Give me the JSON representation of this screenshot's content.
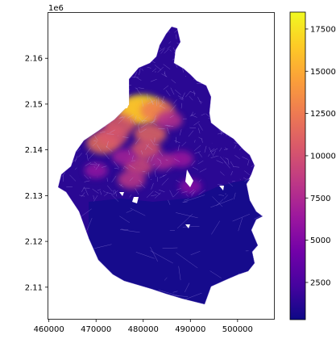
{
  "chart_data": {
    "type": "choropleth",
    "title": "",
    "xlabel": "",
    "ylabel": "",
    "xlim": [
      459800,
      507800
    ],
    "ylim": [
      2103000,
      2170000
    ],
    "x_ticks": [
      460000,
      470000,
      480000,
      490000,
      500000
    ],
    "x_tick_labels": [
      "460000",
      "470000",
      "480000",
      "490000",
      "500000"
    ],
    "y_ticks": [
      2110000,
      2120000,
      2130000,
      2140000,
      2150000,
      2160000
    ],
    "y_tick_labels": [
      "2.11",
      "2.12",
      "2.13",
      "2.14",
      "2.15",
      "2.16"
    ],
    "y_offset_label": "1e6",
    "colormap": "plasma",
    "colorbar": {
      "range": [
        300,
        18500
      ],
      "ticks": [
        2500,
        5000,
        7500,
        10000,
        12500,
        15000,
        17500
      ],
      "tick_labels": [
        "2500",
        "5000",
        "7500",
        "10000",
        "12500",
        "15000",
        "17500"
      ],
      "colors": [
        "#0d0887",
        "#46039f",
        "#7201a8",
        "#9c179e",
        "#bd3786",
        "#d8576b",
        "#ed7953",
        "#fb9f3a",
        "#fdca26",
        "#f0f921"
      ]
    },
    "base_fill_color": "#2a0893",
    "south_zone_color": "#160b8c",
    "boundary_color": "#c9b6ff",
    "hotspots": [
      {
        "x": 480000,
        "y": 2149000,
        "value": 17500
      },
      {
        "x": 478500,
        "y": 2148500,
        "value": 16000
      },
      {
        "x": 483000,
        "y": 2148500,
        "value": 12500
      },
      {
        "x": 475000,
        "y": 2145500,
        "value": 11000
      },
      {
        "x": 471500,
        "y": 2141500,
        "value": 12000
      },
      {
        "x": 473500,
        "y": 2143000,
        "value": 10500
      },
      {
        "x": 481500,
        "y": 2143500,
        "value": 11500
      },
      {
        "x": 480500,
        "y": 2140000,
        "value": 10500
      },
      {
        "x": 479000,
        "y": 2136500,
        "value": 9500
      },
      {
        "x": 477500,
        "y": 2133500,
        "value": 8500
      },
      {
        "x": 485500,
        "y": 2146500,
        "value": 8000
      },
      {
        "x": 488000,
        "y": 2138000,
        "value": 6500
      },
      {
        "x": 484000,
        "y": 2137500,
        "value": 7500
      },
      {
        "x": 476000,
        "y": 2138500,
        "value": 7000
      },
      {
        "x": 490000,
        "y": 2132000,
        "value": 5500
      },
      {
        "x": 470000,
        "y": 2135500,
        "value": 6000
      }
    ]
  }
}
